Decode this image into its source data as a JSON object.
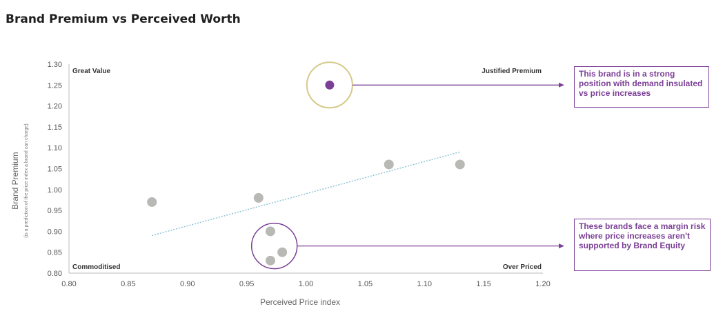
{
  "title": "Brand Premium vs Perceived Worth",
  "chart_data": {
    "type": "scatter",
    "xlabel": "Perceived Price index",
    "ylabel": "Brand Premium",
    "ylabel_sub": "(is a prediction of the price index a brand can charge)",
    "xlim": [
      0.8,
      1.2
    ],
    "ylim": [
      0.8,
      1.3
    ],
    "x_ticks": [
      "0.80",
      "0.85",
      "0.90",
      "0.95",
      "1.00",
      "1.05",
      "1.10",
      "1.15",
      "1.20"
    ],
    "y_ticks": [
      "0.80",
      "0.85",
      "0.90",
      "0.95",
      "1.00",
      "1.05",
      "1.10",
      "1.15",
      "1.20",
      "1.25",
      "1.30"
    ],
    "points": [
      {
        "x": 0.87,
        "y": 0.97,
        "highlight": false
      },
      {
        "x": 0.96,
        "y": 0.98,
        "highlight": false
      },
      {
        "x": 0.97,
        "y": 0.9,
        "highlight": false
      },
      {
        "x": 0.97,
        "y": 0.83,
        "highlight": false
      },
      {
        "x": 0.98,
        "y": 0.85,
        "highlight": false
      },
      {
        "x": 1.02,
        "y": 1.25,
        "highlight": true
      },
      {
        "x": 1.07,
        "y": 1.06,
        "highlight": false
      },
      {
        "x": 1.13,
        "y": 1.06,
        "highlight": false
      }
    ],
    "trendline": {
      "x": [
        0.87,
        1.13
      ],
      "y": [
        0.89,
        1.09
      ]
    },
    "quadrants": {
      "top_left": "Great Value",
      "top_right": "Justified Premium",
      "bottom_left": "Commoditised",
      "bottom_right": "Over Priced"
    },
    "annotations": [
      {
        "text": "This brand is in a strong position with demand insulated vs price increases"
      },
      {
        "text": "These brands face a margin risk where price increases aren't supported by Brand Equity"
      }
    ],
    "colors": {
      "point": "#b8b8b4",
      "highlight": "#7b3f96",
      "circle_top": "#d6c98a",
      "circle_bottom": "#7b3f96",
      "trendline": "#8fc3d6",
      "callout": "#7b3f96"
    },
    "grid": false
  }
}
